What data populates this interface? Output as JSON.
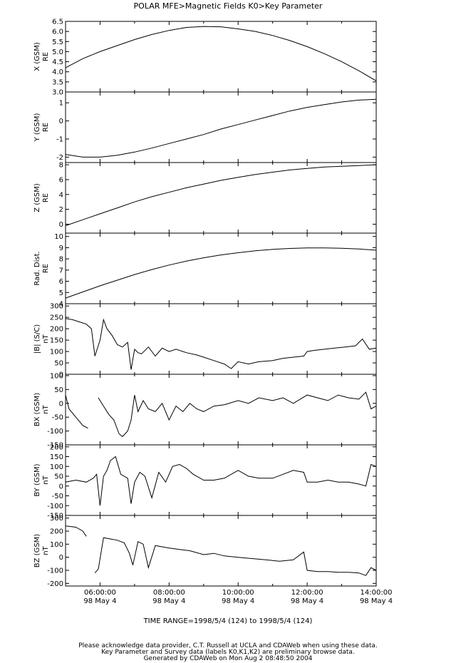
{
  "header": {
    "title": "POLAR  MFE>Magnetic Fields  K0>Key Parameter"
  },
  "time_axis": {
    "start_label": "",
    "tick_times": [
      "06:00:00",
      "08:00:00",
      "10:00:00",
      "12:00:00",
      "14:00:00"
    ],
    "tick_dates": [
      "98 May  4",
      "98 May  4",
      "98 May  4",
      "98 May  4",
      "98 May  4"
    ],
    "time_range": "TIME RANGE=1998/5/4 (124) to 1998/5/4 (124)"
  },
  "footer": {
    "line1": "Please acknowledge data provider, C.T. Russell at UCLA and CDAWeb when using these data.",
    "line2": "Key Parameter and Survey data (labels K0,K1,K2) are preliminary browse data.",
    "line3": "Generated by CDAWeb on Mon Aug  2 08:48:50 2004"
  },
  "chart_data": [
    {
      "type": "line",
      "ylabel": "X (GSM)",
      "units": "RE",
      "ylim": [
        3.0,
        6.5
      ],
      "yticks": [
        3.0,
        3.5,
        4.0,
        4.5,
        5.0,
        5.5,
        6.0,
        6.5
      ],
      "ytick_labels": [
        "3.0",
        "3.5",
        "4.0",
        "4.5",
        "5.0",
        "5.5",
        "6.0",
        "6.5"
      ],
      "x_hours": [
        5.0,
        5.5,
        6.0,
        6.5,
        7.0,
        7.5,
        8.0,
        8.5,
        9.0,
        9.5,
        10.0,
        10.5,
        11.0,
        11.5,
        12.0,
        12.5,
        13.0,
        13.5,
        14.0
      ],
      "values": [
        4.2,
        4.65,
        5.0,
        5.3,
        5.6,
        5.85,
        6.05,
        6.2,
        6.25,
        6.23,
        6.13,
        6.0,
        5.8,
        5.55,
        5.25,
        4.9,
        4.5,
        4.05,
        3.55
      ]
    },
    {
      "type": "line",
      "ylabel": "Y (GSM)",
      "units": "RE",
      "ylim": [
        -2.3,
        1.6
      ],
      "yticks": [
        -2,
        -1,
        0,
        1
      ],
      "ytick_labels": [
        "-2",
        "-1",
        "0",
        "1"
      ],
      "x_hours": [
        5.0,
        5.5,
        6.0,
        6.5,
        7.0,
        7.5,
        8.0,
        8.5,
        9.0,
        9.5,
        10.0,
        10.5,
        11.0,
        11.5,
        12.0,
        12.5,
        13.0,
        13.5,
        14.0
      ],
      "values": [
        -1.85,
        -2.0,
        -2.0,
        -1.9,
        -1.72,
        -1.5,
        -1.25,
        -1.0,
        -0.75,
        -0.45,
        -0.2,
        0.05,
        0.3,
        0.55,
        0.75,
        0.9,
        1.05,
        1.15,
        1.2
      ]
    },
    {
      "type": "line",
      "ylabel": "Z (GSM)",
      "units": "RE",
      "ylim": [
        -1.2,
        8.3
      ],
      "yticks": [
        0,
        2,
        4,
        6,
        8
      ],
      "ytick_labels": [
        "0",
        "2",
        "4",
        "6",
        "8"
      ],
      "x_hours": [
        5.0,
        5.5,
        6.0,
        6.5,
        7.0,
        7.5,
        8.0,
        8.5,
        9.0,
        9.5,
        10.0,
        10.5,
        11.0,
        11.5,
        12.0,
        12.5,
        13.0,
        13.5,
        14.0
      ],
      "values": [
        -0.2,
        0.6,
        1.4,
        2.2,
        3.0,
        3.7,
        4.3,
        4.9,
        5.4,
        5.9,
        6.3,
        6.7,
        7.0,
        7.3,
        7.5,
        7.7,
        7.8,
        7.9,
        8.0
      ]
    },
    {
      "type": "line",
      "ylabel": "Rad. Dist.",
      "units": "RE",
      "ylim": [
        4.0,
        10.3
      ],
      "yticks": [
        4,
        5,
        6,
        7,
        8,
        9,
        10
      ],
      "ytick_labels": [
        "4",
        "5",
        "6",
        "7",
        "8",
        "9",
        "10"
      ],
      "x_hours": [
        5.0,
        5.5,
        6.0,
        6.5,
        7.0,
        7.5,
        8.0,
        8.5,
        9.0,
        9.5,
        10.0,
        10.5,
        11.0,
        11.5,
        12.0,
        12.5,
        13.0,
        13.5,
        14.0
      ],
      "values": [
        4.5,
        5.05,
        5.6,
        6.1,
        6.6,
        7.05,
        7.45,
        7.8,
        8.1,
        8.35,
        8.55,
        8.72,
        8.85,
        8.93,
        8.98,
        8.98,
        8.95,
        8.88,
        8.78
      ]
    },
    {
      "type": "line",
      "ylabel": "|B| (S/C)",
      "units": "nT",
      "ylim": [
        0,
        310
      ],
      "yticks": [
        0,
        50,
        100,
        150,
        200,
        250,
        300
      ],
      "ytick_labels": [
        "0",
        "50",
        "100",
        "150",
        "200",
        "250",
        "300"
      ],
      "x_hours": [
        5.0,
        5.2,
        5.4,
        5.6,
        5.75,
        5.85,
        6.0,
        6.1,
        6.2,
        6.35,
        6.5,
        6.65,
        6.8,
        6.9,
        7.0,
        7.1,
        7.2,
        7.4,
        7.6,
        7.8,
        8.0,
        8.2,
        8.5,
        8.8,
        9.0,
        9.3,
        9.6,
        9.8,
        10.0,
        10.3,
        10.6,
        11.0,
        11.3,
        11.6,
        11.9,
        12.0,
        12.2,
        12.5,
        12.8,
        13.1,
        13.4,
        13.6,
        13.8,
        14.0
      ],
      "values": [
        245,
        240,
        230,
        220,
        200,
        80,
        150,
        240,
        200,
        170,
        130,
        120,
        140,
        20,
        110,
        95,
        90,
        120,
        80,
        115,
        100,
        110,
        95,
        85,
        75,
        60,
        45,
        25,
        55,
        45,
        55,
        60,
        70,
        75,
        80,
        100,
        105,
        110,
        115,
        120,
        125,
        155,
        110,
        115
      ]
    },
    {
      "type": "line",
      "ylabel": "BX (GSM)",
      "units": "nT",
      "ylim": [
        -150,
        105
      ],
      "yticks": [
        -150,
        -100,
        -50,
        0,
        50,
        100
      ],
      "ytick_labels": [
        "-150",
        "-100",
        "-50",
        "0",
        "50",
        "100"
      ],
      "x_hours": [
        5.0,
        5.1,
        5.3,
        5.5,
        5.65,
        5.8,
        5.95,
        6.1,
        6.25,
        6.4,
        6.55,
        6.65,
        6.8,
        6.9,
        7.0,
        7.1,
        7.25,
        7.4,
        7.6,
        7.8,
        8.0,
        8.2,
        8.4,
        8.6,
        8.8,
        9.0,
        9.3,
        9.6,
        10.0,
        10.3,
        10.6,
        11.0,
        11.3,
        11.6,
        12.0,
        12.3,
        12.6,
        12.9,
        13.2,
        13.5,
        13.7,
        13.85,
        14.0
      ],
      "values": [
        30,
        -20,
        -50,
        -80,
        -90,
        null,
        20,
        -10,
        -40,
        -60,
        -110,
        -120,
        -100,
        -60,
        30,
        -30,
        10,
        -20,
        -30,
        0,
        -60,
        -10,
        -30,
        0,
        -20,
        -30,
        -10,
        -5,
        10,
        0,
        20,
        10,
        20,
        0,
        30,
        20,
        10,
        30,
        20,
        15,
        40,
        -20,
        -10
      ]
    },
    {
      "type": "line",
      "ylabel": "BY (GSM)",
      "units": "nT",
      "ylim": [
        -150,
        210
      ],
      "yticks": [
        -150,
        -100,
        -50,
        0,
        50,
        100,
        150,
        200
      ],
      "ytick_labels": [
        "-150",
        "-100",
        "-50",
        "0",
        "50",
        "100",
        "150",
        "200"
      ],
      "x_hours": [
        5.0,
        5.3,
        5.6,
        5.8,
        5.9,
        6.0,
        6.1,
        6.2,
        6.3,
        6.45,
        6.6,
        6.8,
        6.9,
        7.0,
        7.15,
        7.3,
        7.5,
        7.7,
        7.9,
        8.1,
        8.3,
        8.5,
        8.7,
        9.0,
        9.3,
        9.6,
        10.0,
        10.3,
        10.6,
        11.0,
        11.3,
        11.6,
        11.9,
        12.0,
        12.3,
        12.6,
        12.9,
        13.2,
        13.5,
        13.7,
        13.85,
        14.0
      ],
      "values": [
        20,
        30,
        20,
        40,
        60,
        -100,
        50,
        80,
        130,
        150,
        60,
        40,
        -90,
        20,
        70,
        50,
        -60,
        70,
        20,
        100,
        110,
        90,
        60,
        30,
        30,
        40,
        80,
        50,
        40,
        40,
        60,
        80,
        70,
        20,
        20,
        30,
        20,
        20,
        10,
        0,
        110,
        100
      ]
    },
    {
      "type": "line",
      "ylabel": "BZ (GSM)",
      "units": "nT",
      "ylim": [
        -220,
        320
      ],
      "yticks": [
        -200,
        -100,
        0,
        100,
        200,
        300
      ],
      "ytick_labels": [
        "-200",
        "-100",
        "0",
        "100",
        "200",
        "300"
      ],
      "x_hours": [
        5.0,
        5.3,
        5.5,
        5.6,
        5.75,
        5.85,
        5.95,
        6.1,
        6.3,
        6.5,
        6.7,
        6.85,
        6.95,
        7.1,
        7.25,
        7.4,
        7.6,
        7.8,
        8.0,
        8.3,
        8.6,
        9.0,
        9.3,
        9.6,
        10.0,
        10.4,
        10.8,
        11.2,
        11.6,
        11.9,
        12.0,
        12.3,
        12.6,
        12.9,
        13.2,
        13.5,
        13.7,
        13.85,
        14.0
      ],
      "values": [
        240,
        230,
        200,
        160,
        null,
        -120,
        -90,
        150,
        140,
        130,
        110,
        30,
        -60,
        120,
        100,
        -80,
        90,
        80,
        70,
        60,
        50,
        20,
        30,
        10,
        0,
        -10,
        -20,
        -30,
        -20,
        40,
        -100,
        -110,
        -110,
        -115,
        -115,
        -120,
        -140,
        -80,
        -100
      ]
    }
  ]
}
